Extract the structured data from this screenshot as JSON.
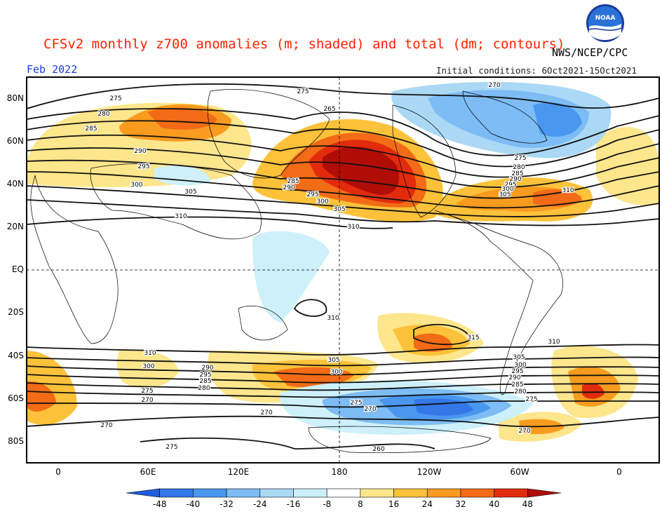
{
  "header": {
    "title": "CFSv2 monthly z700 anomalies (m; shaded) and total (dm; contours)",
    "agency": "NWS/NCEP/CPC",
    "valid_month": "Feb 2022",
    "initial_conditions": "Initial conditions: 6Oct2021-15Oct2021"
  },
  "map": {
    "lat_labels": [
      "80N",
      "60N",
      "40N",
      "20N",
      "EQ",
      "20S",
      "40S",
      "60S",
      "80S"
    ],
    "lon_labels": [
      "0",
      "60E",
      "120E",
      "180",
      "120W",
      "60W",
      "0"
    ],
    "contour_labels": [
      "275",
      "280",
      "285",
      "290",
      "295",
      "300",
      "305",
      "310",
      "315",
      "270",
      "260",
      "265"
    ],
    "palette": {
      "ocean": "#ffffff",
      "land_outline": "#000000",
      "contour": "#111111"
    }
  },
  "colorbar": {
    "ticks": [
      "-48",
      "-40",
      "-32",
      "-24",
      "-16",
      "-8",
      "8",
      "16",
      "24",
      "32",
      "40",
      "48"
    ],
    "colors": [
      "#1f5ddc",
      "#3478e8",
      "#4a97f0",
      "#7dbcf5",
      "#aad8f5",
      "#cdf0fb",
      "#ffffff",
      "#fde68c",
      "#fdc23a",
      "#f99b1f",
      "#f36b16",
      "#e22b0c",
      "#b00d06"
    ]
  }
}
